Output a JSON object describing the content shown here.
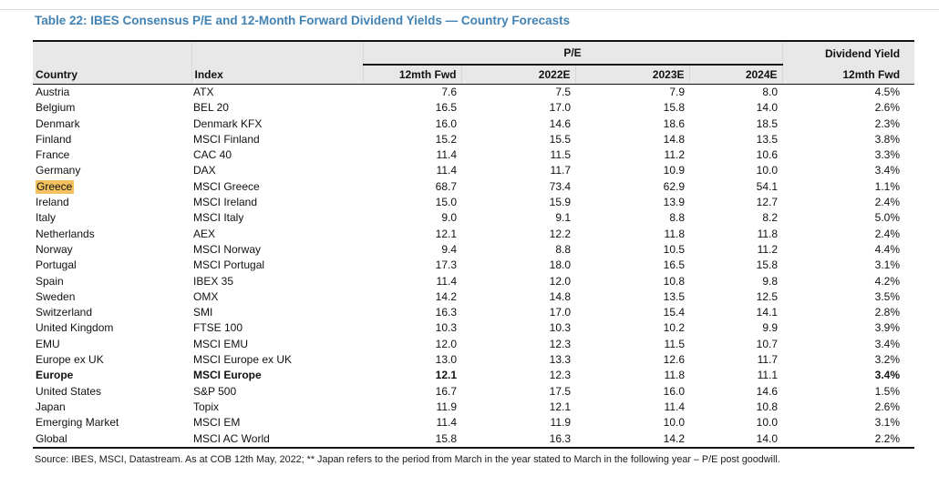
{
  "title": "Table 22: IBES Consensus P/E and 12-Month Forward Dividend Yields — Country Forecasts",
  "source": "Source: IBES, MSCI, Datastream. As at COB 12th May, 2022; ** Japan refers to the period from March in the year stated to March in the following year – P/E post goodwill.",
  "colors": {
    "title_blue": "#4283b4",
    "header_bg": "#e8e8e8",
    "highlight_orange": "#f3c25f",
    "rule_dark": "#141414"
  },
  "table": {
    "group_headers": {
      "pe": "P/E",
      "dividend_yield": "Dividend Yield"
    },
    "columns": [
      "Country",
      "Index",
      "12mth Fwd",
      "2022E",
      "2023E",
      "2024E",
      "12mth Fwd"
    ],
    "rows": [
      {
        "country": "Austria",
        "index": "ATX",
        "fwd": "7.6",
        "y2022": "7.5",
        "y2023": "7.9",
        "y2024": "8.0",
        "dy": "4.5%"
      },
      {
        "country": "Belgium",
        "index": "BEL 20",
        "fwd": "16.5",
        "y2022": "17.0",
        "y2023": "15.8",
        "y2024": "14.0",
        "dy": "2.6%"
      },
      {
        "country": "Denmark",
        "index": "Denmark KFX",
        "fwd": "16.0",
        "y2022": "14.6",
        "y2023": "18.6",
        "y2024": "18.5",
        "dy": "2.3%"
      },
      {
        "country": "Finland",
        "index": "MSCI Finland",
        "fwd": "15.2",
        "y2022": "15.5",
        "y2023": "14.8",
        "y2024": "13.5",
        "dy": "3.8%"
      },
      {
        "country": "France",
        "index": "CAC 40",
        "fwd": "11.4",
        "y2022": "11.5",
        "y2023": "11.2",
        "y2024": "10.6",
        "dy": "3.3%"
      },
      {
        "country": "Germany",
        "index": "DAX",
        "fwd": "11.4",
        "y2022": "11.7",
        "y2023": "10.9",
        "y2024": "10.0",
        "dy": "3.4%"
      },
      {
        "country": "Greece",
        "index": "MSCI Greece",
        "fwd": "68.7",
        "y2022": "73.4",
        "y2023": "62.9",
        "y2024": "54.1",
        "dy": "1.1%",
        "highlight_country": true
      },
      {
        "country": "Ireland",
        "index": "MSCI Ireland",
        "fwd": "15.0",
        "y2022": "15.9",
        "y2023": "13.9",
        "y2024": "12.7",
        "dy": "2.4%"
      },
      {
        "country": "Italy",
        "index": "MSCI Italy",
        "fwd": "9.0",
        "y2022": "9.1",
        "y2023": "8.8",
        "y2024": "8.2",
        "dy": "5.0%"
      },
      {
        "country": "Netherlands",
        "index": "AEX",
        "fwd": "12.1",
        "y2022": "12.2",
        "y2023": "11.8",
        "y2024": "11.8",
        "dy": "2.4%"
      },
      {
        "country": "Norway",
        "index": "MSCI Norway",
        "fwd": "9.4",
        "y2022": "8.8",
        "y2023": "10.5",
        "y2024": "11.2",
        "dy": "4.4%"
      },
      {
        "country": "Portugal",
        "index": "MSCI Portugal",
        "fwd": "17.3",
        "y2022": "18.0",
        "y2023": "16.5",
        "y2024": "15.8",
        "dy": "3.1%"
      },
      {
        "country": "Spain",
        "index": "IBEX 35",
        "fwd": "11.4",
        "y2022": "12.0",
        "y2023": "10.8",
        "y2024": "9.8",
        "dy": "4.2%"
      },
      {
        "country": "Sweden",
        "index": "OMX",
        "fwd": "14.2",
        "y2022": "14.8",
        "y2023": "13.5",
        "y2024": "12.5",
        "dy": "3.5%"
      },
      {
        "country": "Switzerland",
        "index": "SMI",
        "fwd": "16.3",
        "y2022": "17.0",
        "y2023": "15.4",
        "y2024": "14.1",
        "dy": "2.8%"
      },
      {
        "country": "United Kingdom",
        "index": "FTSE 100",
        "fwd": "10.3",
        "y2022": "10.3",
        "y2023": "10.2",
        "y2024": "9.9",
        "dy": "3.9%"
      },
      {
        "country": "EMU",
        "index": "MSCI EMU",
        "fwd": "12.0",
        "y2022": "12.3",
        "y2023": "11.5",
        "y2024": "10.7",
        "dy": "3.4%"
      },
      {
        "country": "Europe ex UK",
        "index": "MSCI Europe ex UK",
        "fwd": "13.0",
        "y2022": "13.3",
        "y2023": "12.6",
        "y2024": "11.7",
        "dy": "3.2%"
      },
      {
        "country": "Europe",
        "index": "MSCI Europe",
        "fwd": "12.1",
        "y2022": "12.3",
        "y2023": "11.8",
        "y2024": "11.1",
        "dy": "3.4%",
        "bold": true
      },
      {
        "country": "United States",
        "index": "S&P 500",
        "fwd": "16.7",
        "y2022": "17.5",
        "y2023": "16.0",
        "y2024": "14.6",
        "dy": "1.5%"
      },
      {
        "country": "Japan",
        "index": "Topix",
        "fwd": "11.9",
        "y2022": "12.1",
        "y2023": "11.4",
        "y2024": "10.8",
        "dy": "2.6%"
      },
      {
        "country": "Emerging Market",
        "index": "MSCI EM",
        "fwd": "11.4",
        "y2022": "11.9",
        "y2023": "10.0",
        "y2024": "10.0",
        "dy": "3.1%"
      },
      {
        "country": "Global",
        "index": "MSCI AC World",
        "fwd": "15.8",
        "y2022": "16.3",
        "y2023": "14.2",
        "y2024": "14.0",
        "dy": "2.2%"
      }
    ]
  }
}
